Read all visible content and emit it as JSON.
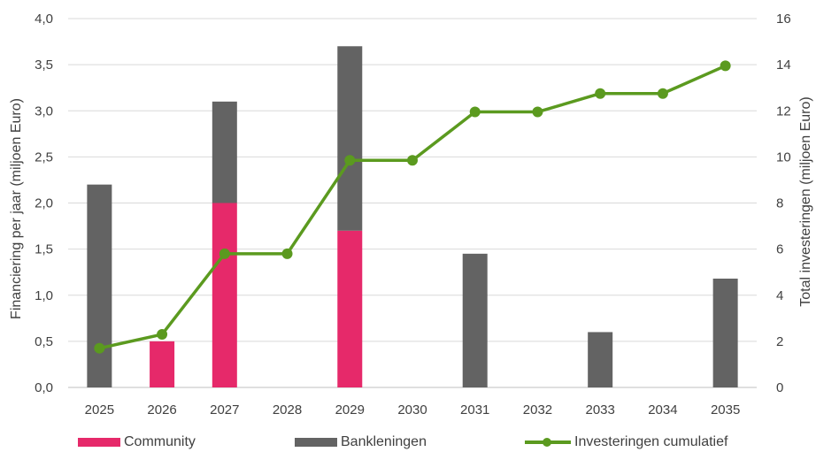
{
  "chart_data": {
    "type": "bar",
    "categories": [
      "2025",
      "2026",
      "2027",
      "2028",
      "2029",
      "2030",
      "2031",
      "2032",
      "2033",
      "2034",
      "2035"
    ],
    "series": [
      {
        "name": "Community",
        "kind": "bar-stacked",
        "axis": "left",
        "color": "#e6296a",
        "values": [
          0,
          0.5,
          2.0,
          0,
          1.7,
          0,
          0,
          0,
          0,
          0,
          0
        ]
      },
      {
        "name": "Bankleningen",
        "kind": "bar-stacked",
        "axis": "left",
        "color": "#636363",
        "values": [
          2.2,
          0,
          1.1,
          0,
          2.0,
          0,
          1.45,
          0,
          0.6,
          0,
          1.18
        ]
      },
      {
        "name": "Investeringen cumulatief",
        "kind": "line",
        "axis": "right",
        "color": "#5b9a1f",
        "values": [
          1.7,
          2.3,
          5.8,
          5.8,
          9.85,
          9.85,
          11.95,
          11.95,
          12.75,
          12.75,
          13.95
        ]
      }
    ],
    "ylabel": "Financiering per jaar (miljoen Euro)",
    "y2label": "Total investeringen (miljoen Euro)",
    "ylim": [
      0,
      4
    ],
    "y2lim": [
      0,
      16
    ],
    "yticks": [
      "0,0",
      "0,5",
      "1,0",
      "1,5",
      "2,0",
      "2,5",
      "3,0",
      "3,5",
      "4,0"
    ],
    "y2ticks": [
      "0",
      "2",
      "4",
      "6",
      "8",
      "10",
      "12",
      "14",
      "16"
    ],
    "grid": true,
    "legend": "bottom"
  }
}
